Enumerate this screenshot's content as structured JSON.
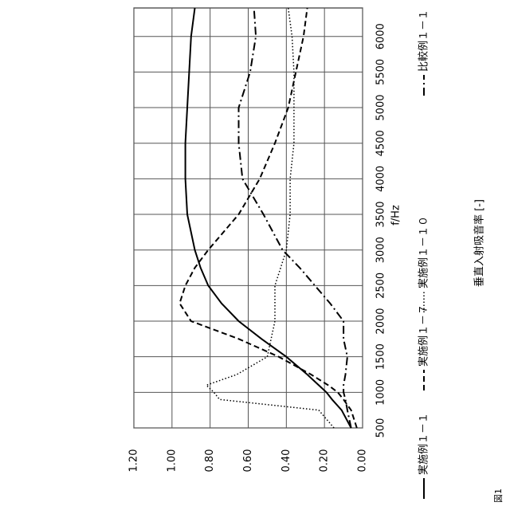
{
  "chart_data": {
    "type": "line",
    "figure_label": "図1",
    "x_label": "f/Hz",
    "y_label": "垂直入射吸音率 [-]",
    "x": [
      500,
      750,
      900,
      1000,
      1100,
      1250,
      1500,
      1750,
      2000,
      2250,
      2500,
      2750,
      3000,
      3500,
      4000,
      4500,
      5000,
      5500,
      6000,
      6400
    ],
    "xlim": [
      500,
      6400
    ],
    "xticks": [
      500,
      1000,
      1500,
      2000,
      2500,
      3000,
      3500,
      4000,
      4500,
      5000,
      5500,
      6000
    ],
    "ylim": [
      0,
      1.2
    ],
    "yticks": [
      {
        "value": 0,
        "label": "0.00"
      },
      {
        "value": 0.2,
        "label": "0.20"
      },
      {
        "value": 0.4,
        "label": "0.40"
      },
      {
        "value": 0.6,
        "label": "0.60"
      },
      {
        "value": 0.8,
        "label": "0.80"
      },
      {
        "value": 1.0,
        "label": "1.00"
      },
      {
        "value": 1.2,
        "label": "1.20"
      }
    ],
    "grid": true,
    "series": [
      {
        "name": "実施例１－１",
        "color": "#000000",
        "style": "solid",
        "values": [
          0.06,
          0.11,
          0.16,
          0.19,
          0.23,
          0.29,
          0.4,
          0.53,
          0.65,
          0.74,
          0.81,
          0.85,
          0.88,
          0.92,
          0.93,
          0.93,
          0.92,
          0.91,
          0.9,
          0.88
        ]
      },
      {
        "name": "実施例１－７",
        "color": "#000000",
        "style": "dashed",
        "values": [
          0.03,
          0.06,
          0.1,
          0.13,
          0.18,
          0.27,
          0.44,
          0.65,
          0.9,
          0.96,
          0.93,
          0.88,
          0.81,
          0.65,
          0.54,
          0.46,
          0.39,
          0.35,
          0.31,
          0.29
        ]
      },
      {
        "name": "実施例１－１０",
        "color": "#000000",
        "style": "dotted",
        "values": [
          0.15,
          0.23,
          0.75,
          0.78,
          0.82,
          0.66,
          0.5,
          0.48,
          0.46,
          0.46,
          0.46,
          0.43,
          0.4,
          0.38,
          0.38,
          0.36,
          0.36,
          0.36,
          0.37,
          0.39
        ]
      },
      {
        "name": "比較例１－１",
        "color": "#000000",
        "style": "dashdot",
        "values": [
          0.06,
          0.08,
          0.09,
          0.1,
          0.1,
          0.09,
          0.08,
          0.1,
          0.1,
          0.17,
          0.25,
          0.33,
          0.42,
          0.52,
          0.63,
          0.65,
          0.65,
          0.59,
          0.56,
          0.57
        ]
      }
    ]
  }
}
